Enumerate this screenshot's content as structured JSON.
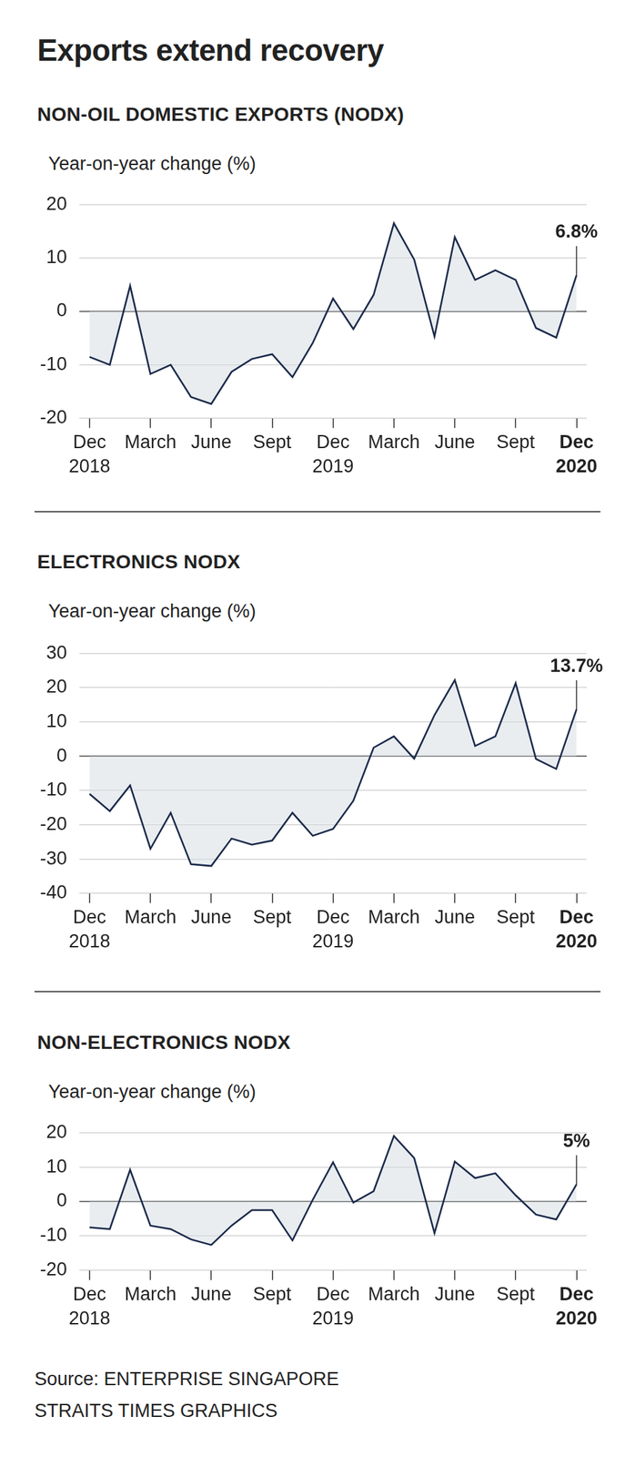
{
  "title": "Exports extend recovery",
  "source": [
    "Source: ENTERPRISE SINGAPORE",
    "STRAITS TIMES GRAPHICS"
  ],
  "chart_data": [
    {
      "type": "area",
      "title": "NON-OIL DOMESTIC EXPORTS (NODX)",
      "y_label": "Year-on-year change (%)",
      "categories": [
        "Dec 2018",
        null,
        null,
        "March",
        null,
        null,
        "June",
        null,
        null,
        "Sept",
        null,
        null,
        "Dec 2019",
        null,
        null,
        "March",
        null,
        null,
        "June",
        null,
        null,
        "Sept",
        null,
        null,
        "Dec 2020"
      ],
      "values": [
        -8.5,
        -10,
        4.8,
        -11.7,
        -10,
        -16,
        -17.3,
        -11.3,
        -8.9,
        -8,
        -12.3,
        -5.9,
        2.4,
        -3.3,
        3.1,
        16.5,
        9.7,
        -4.7,
        13.9,
        5.9,
        7.7,
        5.9,
        -3.1,
        -4.9,
        6.8
      ],
      "color": "#1b2a4a",
      "marker": "none",
      "grid": true,
      "legend": "none",
      "ylim": [
        -20,
        20
      ],
      "yticks": [
        -20,
        -10,
        0,
        10,
        20
      ],
      "annotations": [
        {
          "category": "Dec 2020",
          "value": 6.8,
          "label": "6.8%"
        }
      ]
    },
    {
      "type": "area",
      "title": "ELECTRONICS NODX",
      "y_label": "Year-on-year change (%)",
      "categories": [
        "Dec 2018",
        null,
        null,
        "March",
        null,
        null,
        "June",
        null,
        null,
        "Sept",
        null,
        null,
        "Dec 2019",
        null,
        null,
        "March",
        null,
        null,
        "June",
        null,
        null,
        "Sept",
        null,
        null,
        "Dec 2020"
      ],
      "values": [
        -11,
        -16,
        -8.5,
        -27,
        -16.5,
        -31.5,
        -32,
        -24,
        -25.8,
        -24.6,
        -16.5,
        -23.2,
        -21.2,
        -13,
        2.5,
        5.8,
        -0.7,
        12,
        22.2,
        3,
        5.8,
        21.3,
        -0.8,
        -3.7,
        13.7
      ],
      "color": "#1b2a4a",
      "marker": "none",
      "grid": true,
      "legend": "none",
      "ylim": [
        -40,
        30
      ],
      "yticks": [
        -40,
        -30,
        -20,
        -10,
        0,
        10,
        20,
        30
      ],
      "annotations": [
        {
          "category": "Dec 2020",
          "value": 13.7,
          "label": "13.7%"
        }
      ]
    },
    {
      "type": "area",
      "title": "NON-ELECTRONICS NODX",
      "y_label": "Year-on-year change (%)",
      "categories": [
        "Dec 2018",
        null,
        null,
        "March",
        null,
        null,
        "June",
        null,
        null,
        "Sept",
        null,
        null,
        "Dec 2019",
        null,
        null,
        "March",
        null,
        null,
        "June",
        null,
        null,
        "Sept",
        null,
        null,
        "Dec 2020"
      ],
      "values": [
        -7.5,
        -8,
        9.2,
        -7,
        -8,
        -11,
        -12.6,
        -7,
        -2.5,
        -2.5,
        -11.3,
        0.5,
        11.4,
        -0.3,
        3,
        19,
        12.6,
        -9.2,
        11.6,
        6.8,
        8.2,
        1.8,
        -3.8,
        -5.2,
        5
      ],
      "color": "#1b2a4a",
      "marker": "none",
      "grid": true,
      "legend": "none",
      "ylim": [
        -20,
        20
      ],
      "yticks": [
        -20,
        -10,
        0,
        10,
        20
      ],
      "annotations": [
        {
          "category": "Dec 2020",
          "value": 5,
          "label": "5%"
        }
      ]
    }
  ]
}
